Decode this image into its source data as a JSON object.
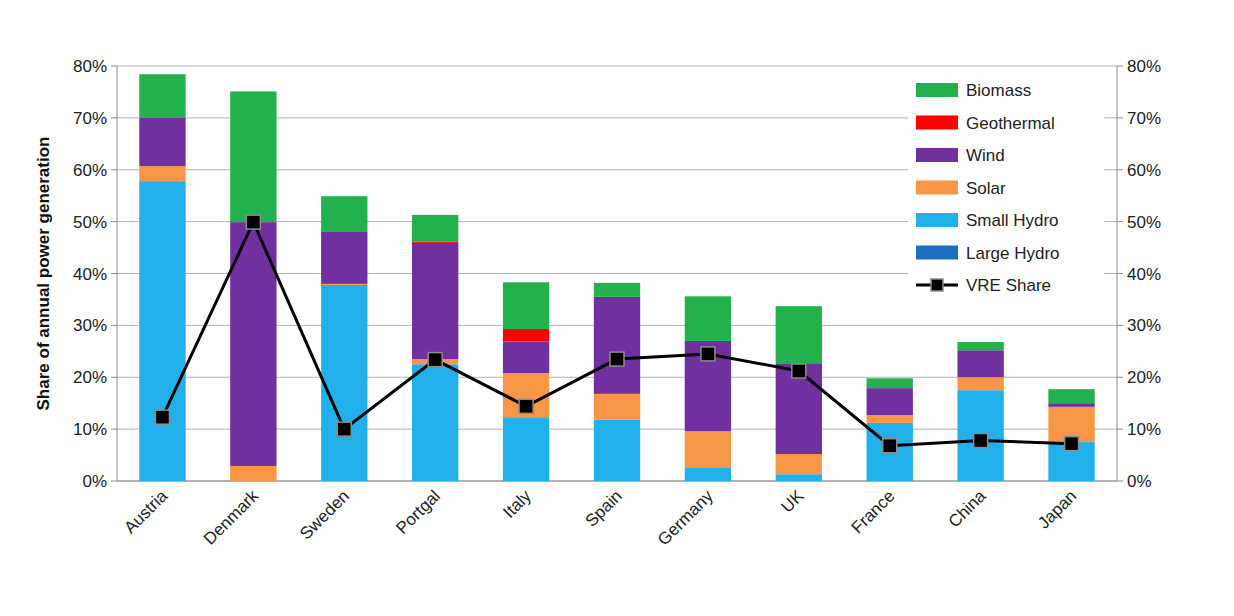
{
  "chart_data": {
    "type": "bar",
    "stacked": true,
    "grid": true,
    "legend": "upper-right",
    "y_label": "Share of annual power generation",
    "categories": [
      "Austria",
      "Denmark",
      "Sweden",
      "Portgal",
      "Italy",
      "Spain",
      "Germany",
      "UK",
      "France",
      "China",
      "Japan"
    ],
    "ylim": [
      0,
      80
    ],
    "yticks": [
      {
        "value": 0,
        "label": "0%"
      },
      {
        "value": 10,
        "label": "10%"
      },
      {
        "value": 20,
        "label": "20%"
      },
      {
        "value": 30,
        "label": "30%"
      },
      {
        "value": 40,
        "label": "40%"
      },
      {
        "value": 50,
        "label": "50%"
      },
      {
        "value": 60,
        "label": "60%"
      },
      {
        "value": 70,
        "label": "70%"
      },
      {
        "value": 80,
        "label": "80%"
      }
    ],
    "y2lim": [
      0,
      80
    ],
    "y2ticks": [
      {
        "value": 0,
        "label": "0%"
      },
      {
        "value": 10,
        "label": "10%"
      },
      {
        "value": 20,
        "label": "20%"
      },
      {
        "value": 30,
        "label": "30%"
      },
      {
        "value": 40,
        "label": "40%"
      },
      {
        "value": 50,
        "label": "50%"
      },
      {
        "value": 60,
        "label": "60%"
      },
      {
        "value": 70,
        "label": "70%"
      },
      {
        "value": 80,
        "label": "80%"
      }
    ],
    "series": [
      {
        "name": "Large Hydro",
        "type": "bar",
        "color": "#1f6fc0",
        "values": [
          0,
          0,
          0,
          0,
          0,
          0,
          0,
          0,
          0,
          0,
          0
        ]
      },
      {
        "name": "Small Hydro",
        "type": "bar",
        "color": "#22b0eb",
        "values": [
          57.8,
          0,
          37.8,
          22.5,
          12.3,
          11.8,
          2.5,
          1.3,
          11.2,
          17.5,
          7.5
        ]
      },
      {
        "name": "Solar",
        "type": "bar",
        "color": "#f79646",
        "values": [
          2.9,
          2.9,
          0.2,
          1.0,
          8.5,
          5.0,
          7.1,
          3.9,
          1.5,
          2.5,
          6.8
        ]
      },
      {
        "name": "Wind",
        "type": "bar",
        "color": "#7030a0",
        "values": [
          9.4,
          47.0,
          10.0,
          22.4,
          6.1,
          18.7,
          17.4,
          17.5,
          5.2,
          5.2,
          0.7
        ]
      },
      {
        "name": "Geothermal",
        "type": "bar",
        "color": "#ff0000",
        "values": [
          0,
          0,
          0,
          0.2,
          2.4,
          0,
          0,
          0,
          0,
          0,
          0
        ]
      },
      {
        "name": "Biomass",
        "type": "bar",
        "color": "#22b14c",
        "values": [
          8.3,
          25.2,
          6.9,
          5.2,
          9.0,
          2.7,
          8.6,
          11.0,
          1.9,
          1.6,
          2.7
        ]
      },
      {
        "name": "VRE Share",
        "type": "line",
        "axis": "y2",
        "color": "#000000",
        "marker": "square",
        "line_style": "solid",
        "values": [
          12.3,
          49.9,
          10.0,
          23.4,
          14.4,
          23.5,
          24.5,
          21.2,
          6.8,
          7.8,
          7.2
        ]
      }
    ]
  }
}
